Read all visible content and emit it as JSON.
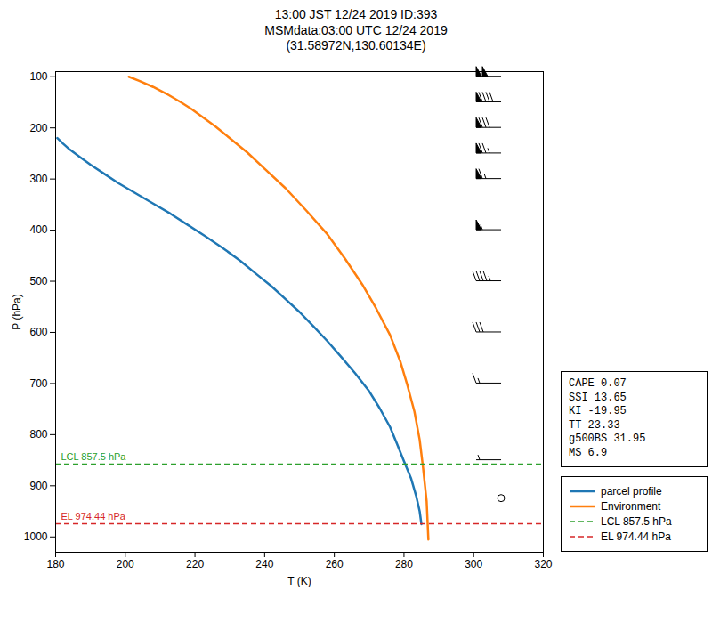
{
  "chart_data": {
    "type": "line",
    "title": "13:00 JST 12/24 2019  ID:393\nMSMdata:03:00 UTC 12/24 2019\n(31.58972N,130.60134E)",
    "x_label": "T (K)",
    "y_label": "P (hPa)",
    "xlim": [
      180,
      320
    ],
    "ylim": [
      1030,
      90
    ],
    "xticks": [
      180,
      200,
      220,
      240,
      260,
      280,
      300,
      320
    ],
    "yticks": [
      100,
      200,
      300,
      400,
      500,
      600,
      700,
      800,
      900,
      1000
    ],
    "grid": false,
    "legend": "lower right",
    "series": [
      {
        "name": "parcel profile",
        "color": "#1f77b4",
        "line_style": "solid",
        "x": [
          180.5,
          182,
          184,
          187,
          190,
          194,
          198,
          203,
          208,
          213,
          218,
          223,
          228,
          233,
          238,
          242,
          246,
          250,
          254,
          258,
          262,
          266,
          270,
          273,
          276,
          278,
          280,
          282,
          283.5,
          284.5,
          285.0
        ],
        "y": [
          220,
          230,
          242,
          257,
          272,
          290,
          308,
          328,
          348,
          368,
          390,
          412,
          435,
          460,
          488,
          510,
          535,
          560,
          588,
          617,
          648,
          680,
          715,
          748,
          785,
          818,
          852,
          885,
          920,
          950,
          975
        ]
      },
      {
        "name": "Environment",
        "color": "#ff7f0e",
        "line_style": "solid",
        "x": [
          201,
          204,
          208,
          212,
          216,
          219,
          222,
          226,
          230,
          235,
          240,
          246,
          252,
          258,
          263,
          268,
          272,
          276,
          279,
          281,
          283,
          284.5,
          285.5,
          286.5,
          287.0
        ],
        "y": [
          100,
          108,
          120,
          134,
          150,
          163,
          178,
          198,
          220,
          248,
          280,
          318,
          362,
          408,
          455,
          506,
          553,
          605,
          658,
          704,
          755,
          810,
          866,
          930,
          1005
        ]
      }
    ],
    "reference_lines": [
      {
        "name": "LCL 857.5 hPa",
        "y": 857.5,
        "color": "#2ca02c",
        "line_style": "dashed"
      },
      {
        "name": "EL 974.44 hPa",
        "y": 974.44,
        "color": "#d62728",
        "line_style": "dashed"
      }
    ],
    "wind_barbs": {
      "x": 308,
      "y": [
        100,
        150,
        200,
        250,
        300,
        400,
        500,
        600,
        700,
        850,
        925
      ],
      "speeds": [
        100,
        90,
        80,
        75,
        65,
        55,
        45,
        30,
        15,
        5,
        0
      ]
    },
    "stats_text": "CAPE 0.07\nSSI 13.65\nKI -19.95\nTT 23.33\ng500BS 31.95\nMS 6.9"
  }
}
